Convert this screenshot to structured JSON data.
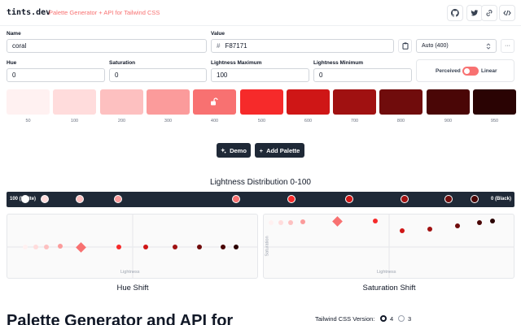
{
  "header": {
    "brand": "tints.dev",
    "tagline": "Palette Generator + API for Tailwind CSS",
    "icons": [
      "github-icon",
      "twitter-icon",
      "link-icon",
      "code-icon"
    ]
  },
  "form": {
    "name_label": "Name",
    "name_value": "coral",
    "value_label": "Value",
    "hash": "#",
    "value_value": "F87171",
    "mode_value": "Auto (400)",
    "more_label": "···",
    "hue_label": "Hue",
    "hue_value": "0",
    "saturation_label": "Saturation",
    "saturation_value": "0",
    "lmax_label": "Lightness Maximum",
    "lmax_value": "100",
    "lmin_label": "Lightness Minimum",
    "lmin_value": "0",
    "perceived_label": "Perceived",
    "linear_label": "Linear"
  },
  "palette": [
    {
      "shade": "50",
      "color": "#fff1f1"
    },
    {
      "shade": "100",
      "color": "#ffdcdc"
    },
    {
      "shade": "200",
      "color": "#fdc0c0"
    },
    {
      "shade": "300",
      "color": "#fb9b9b"
    },
    {
      "shade": "400",
      "color": "#f87171"
    },
    {
      "shade": "500",
      "color": "#f62a2a"
    },
    {
      "shade": "600",
      "color": "#cf1616"
    },
    {
      "shade": "700",
      "color": "#a01111"
    },
    {
      "shade": "800",
      "color": "#700c0c"
    },
    {
      "shade": "900",
      "color": "#4a0606"
    },
    {
      "shade": "950",
      "color": "#2a0303"
    }
  ],
  "actions": {
    "demo_label": "Demo",
    "add_label": "Add Palette"
  },
  "distribution": {
    "title": "Lightness Distribution 0-100",
    "left_label": "100 (White)",
    "right_label": "0 (Black)"
  },
  "charts": {
    "hue_title": "Hue Shift",
    "saturation_title": "Saturation Shift",
    "xlabel": "Lightness",
    "saturation_ylabel": "Saturation"
  },
  "hero": {
    "title": "Palette Generator and API for"
  },
  "version": {
    "label": "Tailwind CSS Version:",
    "option_4": "4",
    "option_3": "3",
    "selected": "4"
  }
}
